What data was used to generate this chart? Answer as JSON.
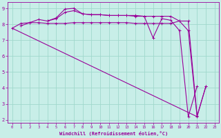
{
  "xlabel": "Windchill (Refroidissement éolien,°C)",
  "bg_color": "#c8eee8",
  "grid_color": "#a0d8cc",
  "line_color": "#990099",
  "xlim": [
    -0.5,
    23.5
  ],
  "ylim": [
    1.8,
    9.4
  ],
  "yticks": [
    2,
    3,
    4,
    5,
    6,
    7,
    8,
    9
  ],
  "xticks": [
    0,
    1,
    2,
    3,
    4,
    5,
    6,
    7,
    8,
    9,
    10,
    11,
    12,
    13,
    14,
    15,
    16,
    17,
    18,
    19,
    20,
    21,
    22,
    23
  ],
  "series_x": [
    [
      0,
      1,
      2,
      3,
      4,
      5,
      6,
      7,
      8,
      9,
      10,
      11,
      12,
      13,
      14,
      15,
      16,
      17,
      18,
      19,
      20,
      21,
      22
    ],
    [
      1,
      2,
      3,
      4,
      5,
      6,
      7,
      8,
      9,
      10,
      11,
      12,
      13,
      14,
      15,
      16,
      17,
      18,
      19,
      20,
      21,
      22
    ],
    [
      4,
      5,
      6,
      7,
      8,
      9,
      10,
      11,
      12,
      13,
      14,
      15,
      16,
      17,
      18,
      19,
      20,
      21,
      22
    ],
    [
      0,
      21
    ]
  ],
  "series_y": [
    [
      7.75,
      8.05,
      8.1,
      8.1,
      8.05,
      8.05,
      8.05,
      8.1,
      8.1,
      8.1,
      8.1,
      8.1,
      8.1,
      8.1,
      8.05,
      8.05,
      8.05,
      8.05,
      8.05,
      8.2,
      8.2,
      2.25,
      4.1
    ],
    [
      7.9,
      8.1,
      8.3,
      8.2,
      8.35,
      8.75,
      8.85,
      8.65,
      8.6,
      8.6,
      8.55,
      8.55,
      8.55,
      8.5,
      8.5,
      7.15,
      8.35,
      8.25,
      7.6,
      2.2,
      4.1,
      null
    ],
    [
      8.2,
      8.4,
      8.95,
      9.0,
      8.65,
      8.6,
      8.6,
      8.55,
      8.55,
      8.55,
      8.55,
      8.5,
      8.5,
      8.5,
      8.5,
      8.2,
      7.6,
      2.2,
      4.1
    ],
    [
      7.75,
      2.2
    ]
  ],
  "series_markers": [
    true,
    true,
    true,
    false
  ]
}
